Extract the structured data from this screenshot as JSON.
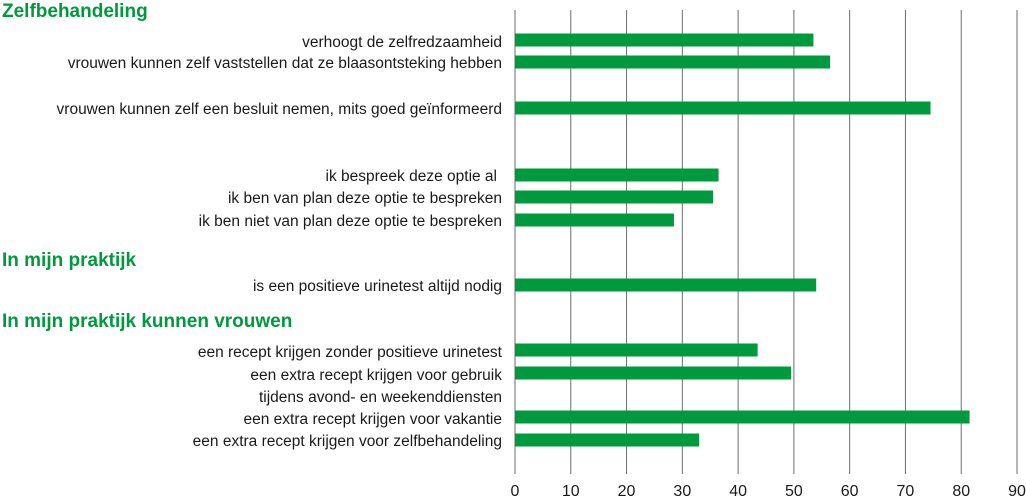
{
  "colors": {
    "bar": "#009a3e",
    "heading": "#009a3e",
    "grid": "#6d6d6d",
    "text": "#1a1a1a"
  },
  "chart_data": {
    "type": "bar",
    "orientation": "horizontal",
    "xlim": [
      0,
      90
    ],
    "xticks": [
      0,
      10,
      20,
      30,
      40,
      50,
      60,
      70,
      80,
      90
    ],
    "grid": true,
    "headings": [
      {
        "id": "h1",
        "text": "Zelfbehandeling"
      },
      {
        "id": "h2",
        "text": "In mijn praktijk"
      },
      {
        "id": "h3",
        "text": "In mijn praktijk kunnen vrouwen"
      }
    ],
    "categories": [
      "verhoogt de zelfredzaamheid",
      "vrouwen kunnen zelf vaststellen dat ze blaasontsteking hebben",
      "vrouwen kunnen zelf een besluit nemen, mits goed geïnformeerd",
      "ik bespreek deze optie al",
      "ik ben van plan deze optie te bespreken",
      "ik ben niet van plan deze optie te bespreken",
      "is een positieve urinetest altijd nodig",
      "een recept krijgen zonder positieve urinetest",
      "een extra recept krijgen voor gebruik",
      "tijdens avond- en weekenddiensten",
      "een extra recept krijgen voor vakantie",
      "een extra recept krijgen voor zelfbehandeling"
    ],
    "values": [
      53.5,
      56.5,
      74.5,
      36.5,
      35.5,
      28.5,
      54,
      43.5,
      49.5,
      null,
      81.5,
      33
    ]
  }
}
